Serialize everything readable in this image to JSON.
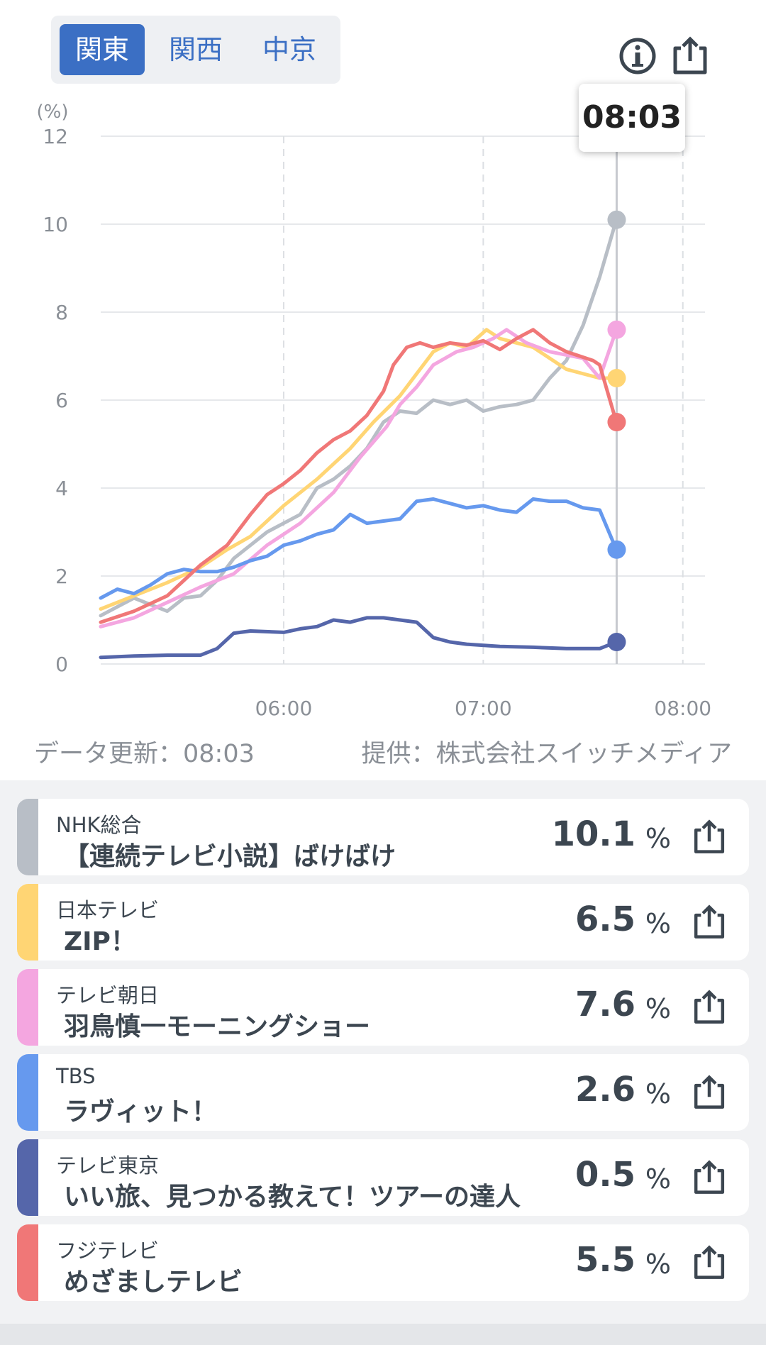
{
  "region_tabs": [
    {
      "label": "関東",
      "active": true
    },
    {
      "label": "関西",
      "active": false
    },
    {
      "label": "中京",
      "active": false
    }
  ],
  "icons": {
    "info": "info-icon",
    "share": "share-icon"
  },
  "tooltip_time": "08:03",
  "footer": {
    "updated": "データ更新：08:03",
    "provider": "提供：株式会社スイッチメディア"
  },
  "chart_data": {
    "type": "line",
    "y_unit_label": "(%)",
    "ylim": [
      0,
      12
    ],
    "y_ticks": [
      "0",
      "2",
      "4",
      "6",
      "8",
      "10",
      "12"
    ],
    "x_ticks": [
      "06:00",
      "07:00",
      "08:00"
    ],
    "x_range": [
      "05:05",
      "08:03"
    ],
    "grid": true,
    "series": [
      {
        "name": "NHK総合",
        "color": "#b8bec6",
        "points": [
          [
            0,
            1.1
          ],
          [
            5,
            1.3
          ],
          [
            10,
            1.5
          ],
          [
            15,
            1.35
          ],
          [
            20,
            1.2
          ],
          [
            25,
            1.5
          ],
          [
            30,
            1.55
          ],
          [
            35,
            1.9
          ],
          [
            40,
            2.4
          ],
          [
            45,
            2.7
          ],
          [
            50,
            3.0
          ],
          [
            55,
            3.2
          ],
          [
            60,
            3.4
          ],
          [
            65,
            4.0
          ],
          [
            70,
            4.2
          ],
          [
            75,
            4.5
          ],
          [
            80,
            4.9
          ],
          [
            85,
            5.5
          ],
          [
            90,
            5.75
          ],
          [
            95,
            5.7
          ],
          [
            100,
            6.0
          ],
          [
            105,
            5.9
          ],
          [
            110,
            6.0
          ],
          [
            115,
            5.75
          ],
          [
            120,
            5.85
          ],
          [
            125,
            5.9
          ],
          [
            130,
            6.0
          ],
          [
            135,
            6.5
          ],
          [
            140,
            6.9
          ],
          [
            145,
            7.7
          ],
          [
            150,
            8.8
          ],
          [
            155,
            10.1
          ]
        ]
      },
      {
        "name": "日本テレビ",
        "color": "#ffd574",
        "points": [
          [
            0,
            1.25
          ],
          [
            10,
            1.55
          ],
          [
            20,
            1.85
          ],
          [
            30,
            2.2
          ],
          [
            38,
            2.6
          ],
          [
            45,
            2.9
          ],
          [
            55,
            3.6
          ],
          [
            65,
            4.2
          ],
          [
            75,
            4.9
          ],
          [
            82,
            5.5
          ],
          [
            90,
            6.1
          ],
          [
            95,
            6.6
          ],
          [
            100,
            7.1
          ],
          [
            105,
            7.3
          ],
          [
            110,
            7.2
          ],
          [
            116,
            7.6
          ],
          [
            120,
            7.4
          ],
          [
            130,
            7.2
          ],
          [
            140,
            6.7
          ],
          [
            150,
            6.5
          ],
          [
            155,
            6.5
          ]
        ]
      },
      {
        "name": "テレビ朝日",
        "color": "#f4a6e0",
        "points": [
          [
            0,
            0.85
          ],
          [
            10,
            1.05
          ],
          [
            20,
            1.4
          ],
          [
            30,
            1.75
          ],
          [
            40,
            2.05
          ],
          [
            50,
            2.7
          ],
          [
            60,
            3.2
          ],
          [
            70,
            3.9
          ],
          [
            78,
            4.7
          ],
          [
            86,
            5.4
          ],
          [
            90,
            5.9
          ],
          [
            95,
            6.3
          ],
          [
            100,
            6.8
          ],
          [
            107,
            7.1
          ],
          [
            112,
            7.2
          ],
          [
            118,
            7.4
          ],
          [
            122,
            7.6
          ],
          [
            128,
            7.3
          ],
          [
            135,
            7.1
          ],
          [
            145,
            6.95
          ],
          [
            150,
            6.5
          ],
          [
            155,
            7.6
          ]
        ]
      },
      {
        "name": "TBS",
        "color": "#6699ee",
        "points": [
          [
            0,
            1.5
          ],
          [
            5,
            1.7
          ],
          [
            10,
            1.6
          ],
          [
            15,
            1.8
          ],
          [
            20,
            2.05
          ],
          [
            25,
            2.15
          ],
          [
            30,
            2.1
          ],
          [
            35,
            2.1
          ],
          [
            40,
            2.2
          ],
          [
            45,
            2.35
          ],
          [
            50,
            2.45
          ],
          [
            55,
            2.7
          ],
          [
            60,
            2.8
          ],
          [
            65,
            2.95
          ],
          [
            70,
            3.05
          ],
          [
            75,
            3.4
          ],
          [
            80,
            3.2
          ],
          [
            85,
            3.25
          ],
          [
            90,
            3.3
          ],
          [
            95,
            3.7
          ],
          [
            100,
            3.75
          ],
          [
            105,
            3.65
          ],
          [
            110,
            3.55
          ],
          [
            115,
            3.6
          ],
          [
            120,
            3.5
          ],
          [
            125,
            3.45
          ],
          [
            130,
            3.75
          ],
          [
            135,
            3.7
          ],
          [
            140,
            3.7
          ],
          [
            145,
            3.55
          ],
          [
            150,
            3.5
          ],
          [
            155,
            2.6
          ]
        ]
      },
      {
        "name": "テレビ東京",
        "color": "#5566aa",
        "points": [
          [
            0,
            0.15
          ],
          [
            10,
            0.18
          ],
          [
            20,
            0.2
          ],
          [
            30,
            0.2
          ],
          [
            35,
            0.35
          ],
          [
            40,
            0.7
          ],
          [
            45,
            0.75
          ],
          [
            55,
            0.72
          ],
          [
            60,
            0.8
          ],
          [
            65,
            0.85
          ],
          [
            70,
            1.0
          ],
          [
            75,
            0.95
          ],
          [
            80,
            1.05
          ],
          [
            85,
            1.05
          ],
          [
            90,
            1.0
          ],
          [
            95,
            0.95
          ],
          [
            100,
            0.6
          ],
          [
            105,
            0.5
          ],
          [
            110,
            0.45
          ],
          [
            120,
            0.4
          ],
          [
            130,
            0.38
          ],
          [
            140,
            0.35
          ],
          [
            150,
            0.35
          ],
          [
            155,
            0.5
          ]
        ]
      },
      {
        "name": "フジテレビ",
        "color": "#f07777",
        "points": [
          [
            0,
            0.95
          ],
          [
            10,
            1.2
          ],
          [
            20,
            1.55
          ],
          [
            30,
            2.25
          ],
          [
            38,
            2.7
          ],
          [
            45,
            3.4
          ],
          [
            50,
            3.85
          ],
          [
            55,
            4.1
          ],
          [
            60,
            4.4
          ],
          [
            65,
            4.8
          ],
          [
            70,
            5.1
          ],
          [
            75,
            5.3
          ],
          [
            80,
            5.65
          ],
          [
            85,
            6.2
          ],
          [
            88,
            6.8
          ],
          [
            92,
            7.2
          ],
          [
            96,
            7.3
          ],
          [
            100,
            7.2
          ],
          [
            105,
            7.3
          ],
          [
            110,
            7.25
          ],
          [
            115,
            7.35
          ],
          [
            120,
            7.15
          ],
          [
            125,
            7.4
          ],
          [
            130,
            7.6
          ],
          [
            135,
            7.3
          ],
          [
            140,
            7.1
          ],
          [
            148,
            6.9
          ],
          [
            150,
            6.8
          ],
          [
            155,
            5.5
          ]
        ]
      }
    ]
  },
  "channels": [
    {
      "channel": "NHK総合",
      "program": "【連続テレビ小説】ばけばけ",
      "value": "10.1",
      "unit": "%",
      "color": "#b8bec6"
    },
    {
      "channel": "日本テレビ",
      "program": "ZIP！",
      "value": "6.5",
      "unit": "%",
      "color": "#ffd574"
    },
    {
      "channel": "テレビ朝日",
      "program": "羽鳥慎一モーニングショー",
      "value": "7.6",
      "unit": "%",
      "color": "#f4a6e0"
    },
    {
      "channel": "TBS",
      "program": "ラヴィット！",
      "value": "2.6",
      "unit": "%",
      "color": "#6699ee"
    },
    {
      "channel": "テレビ東京",
      "program": "いい旅、見つかる教えて！ツアーの達人",
      "value": "0.5",
      "unit": "%",
      "color": "#5566aa"
    },
    {
      "channel": "フジテレビ",
      "program": "めざましテレビ",
      "value": "5.5",
      "unit": "%",
      "color": "#f07777"
    }
  ]
}
